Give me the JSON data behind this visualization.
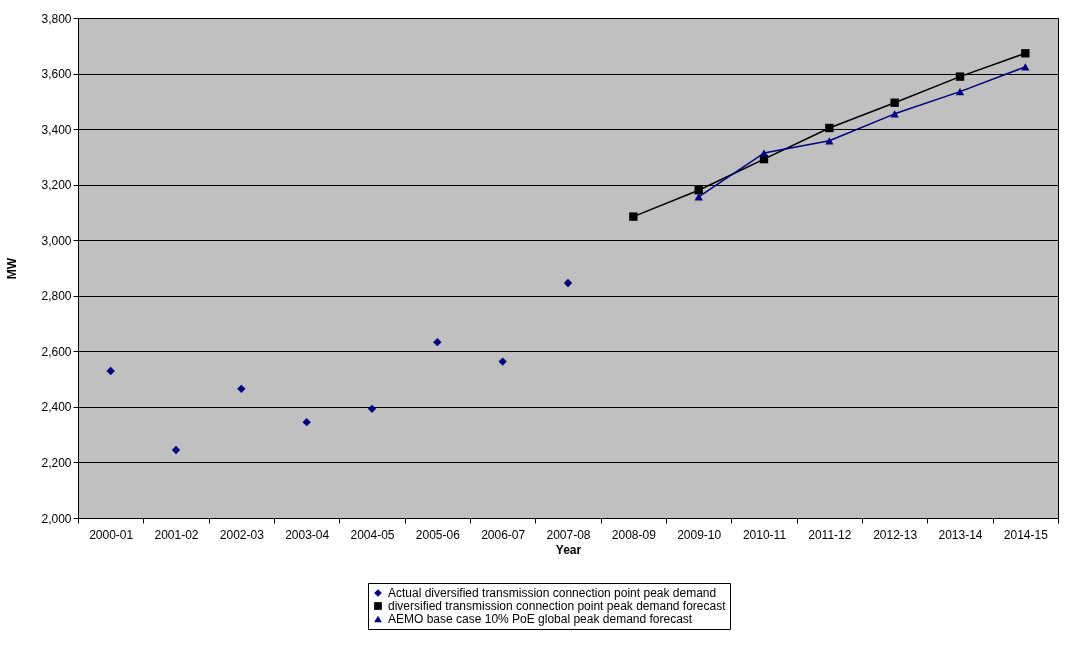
{
  "chart_data": {
    "type": "line",
    "xlabel": "Year",
    "ylabel": "MW",
    "categories": [
      "2000-01",
      "2001-02",
      "2002-03",
      "2003-04",
      "2004-05",
      "2005-06",
      "2006-07",
      "2007-08",
      "2008-09",
      "2009-10",
      "2010-11",
      "2011-12",
      "2012-13",
      "2013-14",
      "2014-15"
    ],
    "series": [
      {
        "name": "Actual diversified transmission connection point peak demand",
        "type": "scatter",
        "marker": "diamond",
        "color": "#000080",
        "values": [
          2529,
          2245,
          2465,
          2345,
          2393,
          2633,
          2563,
          2846,
          null,
          null,
          null,
          null,
          null,
          null,
          null
        ]
      },
      {
        "name": "diversified transmission connection point peak demand forecast",
        "type": "line",
        "marker": "square",
        "color": "#000000",
        "values": [
          null,
          null,
          null,
          null,
          null,
          null,
          null,
          null,
          3085,
          3180,
          3292,
          3404,
          3495,
          3589,
          3673
        ]
      },
      {
        "name": "AEMO base case 10% PoE global peak demand forecast",
        "type": "line",
        "marker": "triangle",
        "color": "#000080",
        "values": [
          null,
          null,
          null,
          null,
          null,
          null,
          null,
          null,
          null,
          3156,
          3314,
          3358,
          3455,
          3535,
          3624
        ]
      }
    ],
    "ylim": [
      2000,
      3800
    ],
    "yticks": [
      {
        "value": 2000,
        "label": "2,000"
      },
      {
        "value": 2200,
        "label": "2,200"
      },
      {
        "value": 2400,
        "label": "2,400"
      },
      {
        "value": 2600,
        "label": "2,600"
      },
      {
        "value": 2800,
        "label": "2,800"
      },
      {
        "value": 3000,
        "label": "3,000"
      },
      {
        "value": 3200,
        "label": "3,200"
      },
      {
        "value": 3400,
        "label": "3,400"
      },
      {
        "value": 3600,
        "label": "3,600"
      },
      {
        "value": 3800,
        "label": "3,800"
      }
    ],
    "grid": "y",
    "legend": "bottom",
    "line_style": "solid"
  }
}
